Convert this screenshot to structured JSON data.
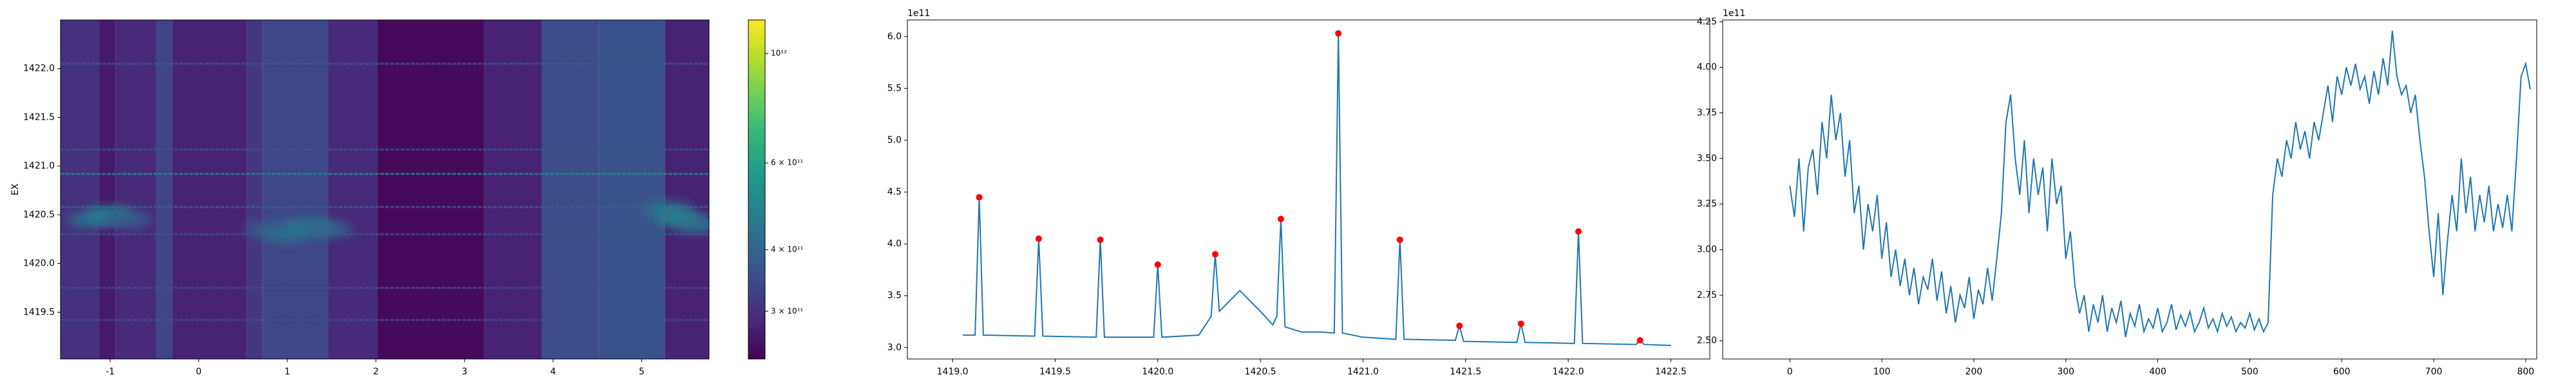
{
  "chart_data": [
    {
      "type": "heatmap",
      "ylabel": "EX",
      "xlim": [
        -1.56,
        5.76
      ],
      "ylim": [
        1419.02,
        1422.5
      ],
      "xticks": [
        -1,
        0,
        1,
        2,
        3,
        4,
        5
      ],
      "yticks": [
        1419.5,
        {
          "value": 1420,
          "label": "1420.0"
        },
        1420.5,
        {
          "value": 1421,
          "label": "1421.0"
        },
        1421.5,
        {
          "value": 1422,
          "label": "1422.0"
        }
      ],
      "x_edges": [
        -1.56,
        -1.13,
        -0.94,
        -0.48,
        -0.3,
        0.54,
        0.72,
        1.46,
        2.02,
        3.22,
        3.87,
        4.52,
        5.26,
        5.76
      ],
      "column_values": [
        300000000000.0,
        270000000000.0,
        290000000000.0,
        330000000000.0,
        280000000000.0,
        310000000000.0,
        340000000000.0,
        290000000000.0,
        250000000000.0,
        280000000000.0,
        350000000000.0,
        360000000000.0,
        280000000000.0
      ],
      "lines": {
        "y": [
          1422.05,
          1421.17,
          1420.92,
          1420.58,
          1420.3,
          1419.75,
          1419.42
        ],
        "values": [
          380000000000.0,
          370000000000.0,
          500000000000.0,
          390000000000.0,
          370000000000.0,
          360000000000.0,
          360000000000.0
        ]
      },
      "ridge": {
        "x": [
          -1.2,
          -1.0,
          -0.8,
          0.8,
          1.0,
          1.25,
          1.45,
          5.3,
          5.45,
          5.65
        ],
        "y": [
          1420.45,
          1420.5,
          1420.45,
          1420.35,
          1420.3,
          1420.38,
          1420.35,
          1420.55,
          1420.45,
          1420.4
        ],
        "values": [
          420000000000.0,
          480000000000.0,
          380000000000.0,
          380000000000.0,
          420000000000.0,
          450000000000.0,
          400000000000.0,
          450000000000.0,
          500000000000.0,
          430000000000.0
        ]
      },
      "colorbar": {
        "scale": "log",
        "cmap": "viridis",
        "lim": [
          240000000000.0,
          1170000000000.0
        ],
        "ticks": [
          {
            "value": 1000000000000.0,
            "label": "10¹²"
          },
          {
            "value": 600000000000.0,
            "label": "6 × 10¹¹"
          },
          {
            "value": 400000000000.0,
            "label": "4 × 10¹¹"
          },
          {
            "value": 300000000000.0,
            "label": "3 × 10¹¹"
          }
        ]
      }
    },
    {
      "type": "line",
      "offset_label": "1e11",
      "color": "#1f77b4",
      "xlim": [
        1418.78,
        1422.69
      ],
      "ylim": [
        2.89,
        6.16
      ],
      "xticks": [
        {
          "value": 1419,
          "label": "1419.0"
        },
        1419.5,
        {
          "value": 1420,
          "label": "1420.0"
        },
        1420.5,
        {
          "value": 1421,
          "label": "1421.0"
        },
        1421.5,
        {
          "value": 1422,
          "label": "1422.0"
        },
        1422.5
      ],
      "yticks": [
        {
          "value": 3,
          "label": "3.0"
        },
        3.5,
        {
          "value": 4,
          "label": "4.0"
        },
        4.5,
        {
          "value": 5,
          "label": "5.0"
        },
        5.5,
        {
          "value": 6,
          "label": "6.0"
        }
      ],
      "x": [
        1419.05,
        1419.11,
        1419.13,
        1419.15,
        1419.4,
        1419.42,
        1419.44,
        1419.7,
        1419.72,
        1419.74,
        1419.98,
        1420.0,
        1420.02,
        1420.2,
        1420.26,
        1420.28,
        1420.3,
        1420.35,
        1420.4,
        1420.45,
        1420.5,
        1420.56,
        1420.58,
        1420.6,
        1420.62,
        1420.7,
        1420.8,
        1420.86,
        1420.88,
        1420.9,
        1421.0,
        1421.16,
        1421.18,
        1421.2,
        1421.45,
        1421.47,
        1421.49,
        1421.75,
        1421.77,
        1421.79,
        1422.03,
        1422.05,
        1422.07,
        1422.33,
        1422.35,
        1422.37,
        1422.5
      ],
      "values": [
        3.12,
        3.12,
        4.45,
        3.12,
        3.11,
        4.05,
        3.11,
        3.1,
        4.04,
        3.1,
        3.1,
        3.8,
        3.1,
        3.12,
        3.3,
        3.9,
        3.35,
        3.45,
        3.55,
        3.45,
        3.35,
        3.22,
        3.3,
        4.24,
        3.2,
        3.15,
        3.15,
        3.14,
        6.03,
        3.14,
        3.1,
        3.08,
        4.04,
        3.08,
        3.07,
        3.21,
        3.06,
        3.05,
        3.23,
        3.05,
        3.04,
        4.12,
        3.04,
        3.03,
        3.07,
        3.03,
        3.02
      ],
      "peaks": {
        "color": "#ff0000",
        "x": [
          1419.13,
          1419.42,
          1419.72,
          1420.0,
          1420.28,
          1420.6,
          1420.88,
          1421.18,
          1421.47,
          1421.77,
          1422.05,
          1422.35
        ],
        "values": [
          4.45,
          4.05,
          4.04,
          3.8,
          3.9,
          4.24,
          6.03,
          4.04,
          3.21,
          3.23,
          4.12,
          3.07
        ]
      }
    },
    {
      "type": "line",
      "offset_label": "1e11",
      "color": "#1f77b4",
      "xlim": [
        -73,
        812
      ],
      "ylim": [
        2.4,
        4.26
      ],
      "xticks": [
        0,
        100,
        200,
        300,
        400,
        500,
        600,
        700,
        800
      ],
      "yticks": [
        {
          "value": 2.5,
          "label": "2.50"
        },
        {
          "value": 2.75,
          "label": "2.75"
        },
        {
          "value": 3,
          "label": "3.00"
        },
        {
          "value": 3.25,
          "label": "3.25"
        },
        {
          "value": 3.5,
          "label": "3.50"
        },
        {
          "value": 3.75,
          "label": "3.75"
        },
        {
          "value": 4,
          "label": "4.00"
        },
        {
          "value": 4.25,
          "label": "4.25"
        }
      ],
      "x": [
        0,
        5,
        10,
        15,
        20,
        25,
        30,
        35,
        40,
        45,
        50,
        55,
        60,
        65,
        70,
        75,
        80,
        85,
        90,
        95,
        100,
        105,
        110,
        115,
        120,
        125,
        130,
        135,
        140,
        145,
        150,
        155,
        160,
        165,
        170,
        175,
        180,
        185,
        190,
        195,
        200,
        205,
        210,
        215,
        220,
        225,
        230,
        235,
        240,
        245,
        250,
        255,
        260,
        265,
        270,
        275,
        280,
        285,
        290,
        295,
        300,
        305,
        310,
        315,
        320,
        325,
        330,
        335,
        340,
        345,
        350,
        355,
        360,
        365,
        370,
        375,
        380,
        385,
        390,
        395,
        400,
        405,
        410,
        415,
        420,
        425,
        430,
        435,
        440,
        445,
        450,
        455,
        460,
        465,
        470,
        475,
        480,
        485,
        490,
        495,
        500,
        505,
        510,
        515,
        520,
        525,
        530,
        535,
        540,
        545,
        550,
        555,
        560,
        565,
        570,
        575,
        580,
        585,
        590,
        595,
        600,
        605,
        610,
        615,
        620,
        625,
        630,
        635,
        640,
        645,
        650,
        655,
        660,
        665,
        670,
        675,
        680,
        685,
        690,
        695,
        700,
        705,
        710,
        715,
        720,
        725,
        730,
        735,
        740,
        745,
        750,
        755,
        760,
        765,
        770,
        775,
        780,
        785,
        790,
        795,
        800,
        805
      ],
      "values": [
        3.35,
        3.18,
        3.5,
        3.1,
        3.45,
        3.55,
        3.3,
        3.7,
        3.5,
        3.85,
        3.6,
        3.75,
        3.4,
        3.6,
        3.2,
        3.35,
        3.0,
        3.25,
        3.1,
        3.3,
        2.95,
        3.15,
        2.85,
        3.0,
        2.8,
        2.95,
        2.75,
        2.9,
        2.7,
        2.85,
        2.78,
        2.95,
        2.72,
        2.88,
        2.65,
        2.8,
        2.6,
        2.75,
        2.68,
        2.85,
        2.62,
        2.78,
        2.7,
        2.9,
        2.72,
        2.95,
        3.2,
        3.7,
        3.85,
        3.5,
        3.3,
        3.6,
        3.2,
        3.5,
        3.3,
        3.45,
        3.1,
        3.5,
        3.25,
        3.35,
        2.95,
        3.1,
        2.8,
        2.65,
        2.75,
        2.55,
        2.7,
        2.6,
        2.75,
        2.55,
        2.68,
        2.6,
        2.72,
        2.52,
        2.65,
        2.58,
        2.7,
        2.55,
        2.62,
        2.57,
        2.68,
        2.55,
        2.6,
        2.7,
        2.56,
        2.64,
        2.58,
        2.66,
        2.55,
        2.6,
        2.68,
        2.57,
        2.62,
        2.55,
        2.65,
        2.58,
        2.63,
        2.55,
        2.6,
        2.57,
        2.65,
        2.56,
        2.62,
        2.55,
        2.6,
        3.3,
        3.5,
        3.4,
        3.6,
        3.5,
        3.7,
        3.55,
        3.65,
        3.5,
        3.7,
        3.6,
        3.75,
        3.9,
        3.7,
        3.95,
        3.85,
        4.0,
        3.9,
        4.02,
        3.88,
        3.95,
        3.8,
        3.98,
        3.85,
        4.05,
        3.9,
        4.2,
        3.95,
        3.85,
        3.9,
        3.75,
        3.85,
        3.6,
        3.4,
        3.1,
        2.85,
        3.2,
        2.75,
        3.05,
        3.3,
        3.1,
        3.5,
        3.2,
        3.4,
        3.1,
        3.3,
        3.15,
        3.35,
        3.1,
        3.25,
        3.12,
        3.3,
        3.1,
        3.5,
        3.95,
        4.02,
        3.88
      ]
    }
  ]
}
